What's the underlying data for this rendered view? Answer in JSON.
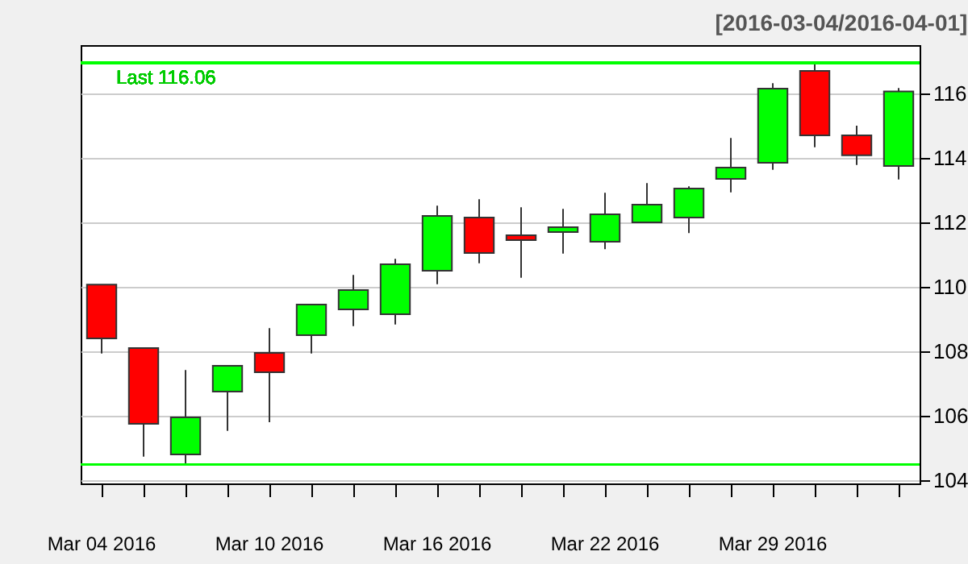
{
  "chart_data": {
    "type": "candlestick",
    "title": "[2016-03-04/2016-04-01]",
    "categories": [
      "Mar 04 2016",
      null,
      null,
      null,
      "Mar 10 2016",
      null,
      null,
      null,
      "Mar 16 2016",
      null,
      null,
      null,
      "Mar 22 2016",
      null,
      null,
      null,
      "Mar 29 2016",
      null,
      null,
      null
    ],
    "ohlc": [
      [
        110.07,
        110.07,
        107.93,
        108.4
      ],
      [
        108.1,
        108.1,
        104.73,
        105.75
      ],
      [
        104.8,
        107.42,
        104.48,
        105.95
      ],
      [
        106.75,
        107.55,
        105.53,
        107.55
      ],
      [
        107.95,
        108.72,
        105.8,
        107.35
      ],
      [
        108.5,
        109.45,
        107.93,
        109.45
      ],
      [
        109.3,
        110.37,
        108.78,
        109.9
      ],
      [
        109.15,
        110.87,
        108.83,
        110.7
      ],
      [
        110.5,
        112.52,
        110.08,
        112.2
      ],
      [
        112.15,
        112.72,
        110.73,
        111.05
      ],
      [
        111.6,
        112.47,
        110.28,
        111.45
      ],
      [
        111.7,
        112.42,
        111.03,
        111.85
      ],
      [
        111.4,
        112.92,
        111.17,
        112.25
      ],
      [
        112.0,
        113.22,
        112.0,
        112.55
      ],
      [
        112.15,
        113.12,
        111.67,
        113.05
      ],
      [
        113.35,
        114.62,
        112.93,
        113.7
      ],
      [
        113.85,
        116.32,
        113.63,
        116.15
      ],
      [
        116.7,
        116.95,
        114.33,
        114.7
      ],
      [
        114.7,
        115.0,
        113.78,
        114.08
      ],
      [
        113.75,
        116.17,
        113.33,
        116.06
      ]
    ],
    "colors": [
      "#ff0000",
      "#ff0000",
      "#00ff00",
      "#00ff00",
      "#ff0000",
      "#00ff00",
      "#00ff00",
      "#00ff00",
      "#00ff00",
      "#ff0000",
      "#ff0000",
      "#00ff00",
      "#00ff00",
      "#00ff00",
      "#00ff00",
      "#00ff00",
      "#00ff00",
      "#ff0000",
      "#ff0000",
      "#00ff00"
    ],
    "ylim": [
      103.9,
      117.5
    ],
    "yticks": [
      104,
      106,
      108,
      110,
      112,
      114,
      116
    ],
    "grid": "y",
    "ref_lines": [
      {
        "axis": "y",
        "value": 116.95,
        "color": "#00ff00"
      },
      {
        "axis": "y",
        "value": 104.48,
        "color": "#00ff00"
      }
    ],
    "annotations": [
      "Last 116.06"
    ]
  }
}
